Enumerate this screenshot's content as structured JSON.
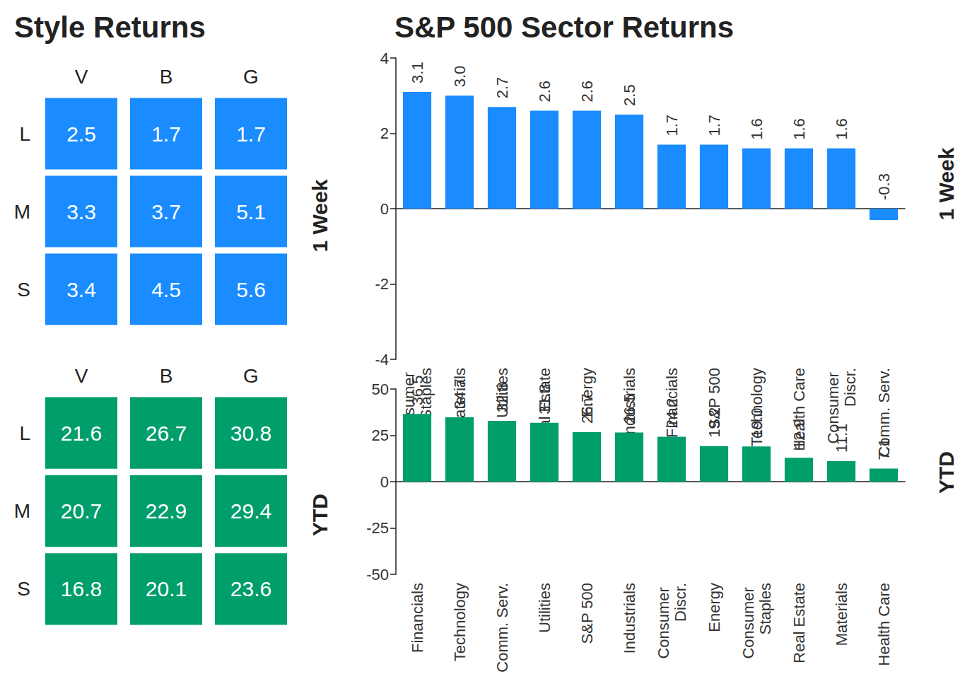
{
  "chart_data": [
    {
      "type": "heatmap",
      "title": "Style Returns",
      "subtitle": "1 Week",
      "x": [
        "V",
        "B",
        "G"
      ],
      "y": [
        "L",
        "M",
        "S"
      ],
      "cells": [
        [
          2.5,
          1.7,
          1.7
        ],
        [
          3.3,
          3.7,
          5.1
        ],
        [
          3.4,
          4.5,
          5.6
        ]
      ],
      "color": "#1a8cff",
      "data_labels": true
    },
    {
      "type": "heatmap",
      "subtitle": "YTD",
      "x": [
        "V",
        "B",
        "G"
      ],
      "y": [
        "L",
        "M",
        "S"
      ],
      "cells": [
        [
          21.6,
          26.7,
          30.8
        ],
        [
          20.7,
          22.9,
          29.4
        ],
        [
          16.8,
          20.1,
          23.6
        ]
      ],
      "color": "#009e6b",
      "data_labels": true
    },
    {
      "type": "bar",
      "title": "S&P 500 Sector Returns",
      "subtitle": "1 Week",
      "categories": [
        "Consumer Staples",
        "Materials",
        "Utilities",
        "Real Estate",
        "Energy",
        "Industrials",
        "Financials",
        "S&P 500",
        "Technology",
        "Health Care",
        "Consumer Discr.",
        "Comm. Serv."
      ],
      "values": [
        3.1,
        3.0,
        2.7,
        2.6,
        2.6,
        2.5,
        1.7,
        1.7,
        1.6,
        1.6,
        1.6,
        -0.3
      ],
      "value_labels": [
        "3.1",
        "3.0",
        "2.7",
        "2.6",
        "2.6",
        "2.5",
        "1.7",
        "1.7",
        "1.6",
        "1.6",
        "1.6",
        "-0.3"
      ],
      "color": "#1a8cff",
      "ylim": [
        -4,
        4
      ],
      "yticks": [
        -4,
        -2,
        0,
        2,
        4
      ],
      "grid": false,
      "data_labels": true
    },
    {
      "type": "bar",
      "subtitle": "YTD",
      "categories": [
        "Financials",
        "Technology",
        "Comm. Serv.",
        "Utilities",
        "S&P 500",
        "Industrials",
        "Consumer Discr.",
        "Energy",
        "Consumer Staples",
        "Real Estate",
        "Materials",
        "Health Care"
      ],
      "values": [
        36.5,
        34.7,
        32.8,
        31.8,
        26.7,
        26.5,
        24.2,
        19.2,
        19.0,
        12.9,
        11.1,
        7.1
      ],
      "value_labels": [
        "36.5",
        "34.7",
        "32.8",
        "31.8",
        "26.7",
        "26.5",
        "24.2",
        "19.2",
        "19.0",
        "12.9",
        "11.1",
        "7.1"
      ],
      "color": "#009e6b",
      "ylim": [
        -50,
        50
      ],
      "yticks": [
        -50,
        -25,
        0,
        25,
        50
      ],
      "grid": false,
      "data_labels": true
    }
  ]
}
